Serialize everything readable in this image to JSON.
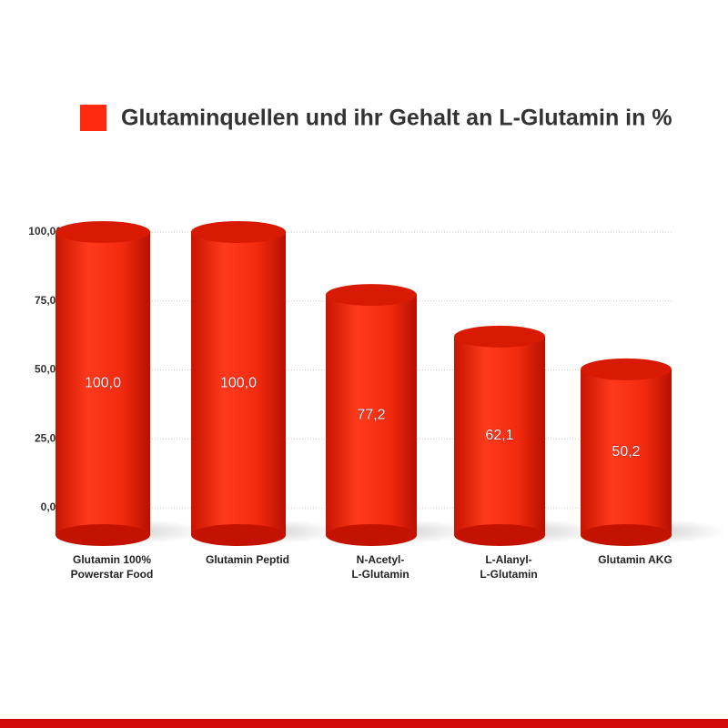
{
  "chart_data": {
    "type": "bar",
    "categories": [
      [
        "Glutamin 100%",
        "Powerstar Food"
      ],
      [
        "Glutamin Peptid"
      ],
      [
        "N-Acetyl-",
        "L-Glutamin"
      ],
      [
        "L-Alanyl-",
        "L-Glutamin"
      ],
      [
        "Glutamin AKG"
      ]
    ],
    "series": [
      {
        "name": "Glutaminquellen und ihr Gehalt an L-Glutamin in %",
        "color": "#ff2a10",
        "values": [
          100.0,
          100.0,
          77.2,
          62.1,
          50.2
        ],
        "value_labels": [
          "100,0",
          "100,0",
          "77,2",
          "62,1",
          "50,2"
        ]
      }
    ],
    "ylim": [
      0,
      100
    ],
    "yticks": [
      {
        "value": 0,
        "label": "0,00"
      },
      {
        "value": 25,
        "label": "25,00"
      },
      {
        "value": 50,
        "label": "50,00"
      },
      {
        "value": 75,
        "label": "75,00"
      },
      {
        "value": 100,
        "label": "100,00"
      }
    ],
    "grid": true,
    "legend": "top"
  }
}
